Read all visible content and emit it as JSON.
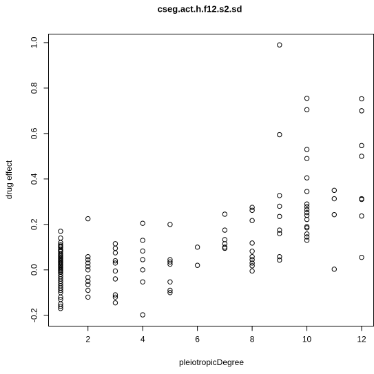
{
  "chart_data": {
    "type": "scatter",
    "title": "cseg.act.h.f12.s2.sd",
    "xlabel": "pleiotropicDegree",
    "ylabel": "drug effect",
    "xlim": [
      0.56,
      12.44
    ],
    "ylim": [
      -0.2476,
      1.0376
    ],
    "xticks": [
      2,
      4,
      6,
      8,
      10,
      12
    ],
    "yticks": [
      -0.2,
      {
        "value": 0,
        "label": "0.0"
      },
      0.2,
      0.4,
      0.6,
      0.8,
      {
        "value": 1,
        "label": "1.0"
      }
    ],
    "color": "#000000",
    "x": [
      1,
      1,
      1,
      1,
      1,
      1,
      1,
      1,
      1,
      1,
      1,
      1,
      1,
      1,
      1,
      1,
      1,
      1,
      1,
      1,
      1,
      1,
      1,
      1,
      1,
      1,
      1,
      1,
      1,
      1,
      1,
      1,
      1,
      1,
      1,
      1,
      1,
      1,
      1,
      1,
      2,
      2,
      2,
      2,
      2,
      2,
      2,
      2,
      2,
      2,
      2,
      3,
      3,
      3,
      3,
      3,
      3,
      3,
      3,
      3,
      3,
      4,
      4,
      4,
      4,
      4,
      4,
      4,
      5,
      5,
      5,
      5,
      5,
      5,
      5,
      6,
      6,
      7,
      7,
      7,
      7,
      7,
      7,
      8,
      8,
      8,
      8,
      8,
      8,
      8,
      8,
      8,
      8,
      9,
      9,
      9,
      9,
      9,
      9,
      9,
      9,
      9,
      10,
      10,
      10,
      10,
      10,
      10,
      10,
      10,
      10,
      10,
      10,
      10,
      10,
      10,
      10,
      10,
      10,
      11,
      11,
      11,
      11,
      12,
      12,
      12,
      12,
      12,
      12,
      12,
      12
    ],
    "y": [
      0.17,
      0.14,
      0.12,
      0.11,
      0.105,
      0.1,
      0.09,
      0.085,
      0.08,
      0.07,
      0.065,
      0.06,
      0.055,
      0.05,
      0.045,
      0.04,
      0.035,
      0.03,
      0.025,
      0.02,
      0.015,
      0.01,
      0.005,
      0,
      -0.005,
      -0.01,
      -0.02,
      -0.03,
      -0.04,
      -0.05,
      -0.06,
      -0.07,
      -0.08,
      -0.09,
      -0.1,
      -0.12,
      -0.13,
      -0.15,
      -0.16,
      -0.17,
      0.225,
      0.058,
      0.045,
      0.03,
      0.015,
      0,
      -0.033,
      -0.05,
      -0.065,
      -0.09,
      -0.12,
      0.115,
      0.095,
      0.075,
      0.04,
      0.03,
      -0.005,
      -0.04,
      -0.11,
      -0.12,
      -0.145,
      0.205,
      0.13,
      0.083,
      0.045,
      0,
      -0.053,
      -0.198,
      0.2,
      0.045,
      0.035,
      0.025,
      -0.053,
      -0.09,
      -0.1,
      0.1,
      0.02,
      0.245,
      0.175,
      0.133,
      0.115,
      0.1,
      0.095,
      0.275,
      0.262,
      0.217,
      0.118,
      0.082,
      0.058,
      0.045,
      0.03,
      0.018,
      -0.005,
      0.99,
      0.595,
      0.327,
      0.28,
      0.235,
      0.175,
      0.16,
      0.058,
      0.043,
      0.755,
      0.705,
      0.53,
      0.49,
      0.405,
      0.345,
      0.29,
      0.278,
      0.265,
      0.252,
      0.24,
      0.222,
      0.19,
      0.185,
      0.158,
      0.145,
      0.13,
      0.35,
      0.313,
      0.243,
      0.003,
      0.753,
      0.7,
      0.547,
      0.5,
      0.313,
      0.31,
      0.237,
      0.055
    ]
  }
}
